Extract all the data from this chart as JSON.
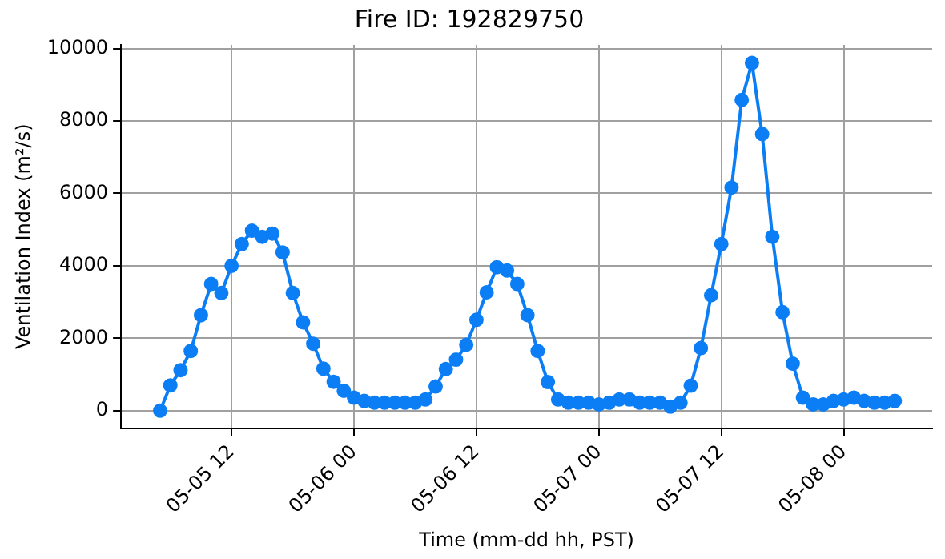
{
  "chart_data": {
    "type": "line",
    "title": "Fire ID: 192829750",
    "xlabel": "Time (mm-dd hh, PST)",
    "ylabel": "Ventilation Index (m²/s)",
    "x": [
      "--05-05T05:00",
      "--05-05T06:00",
      "--05-05T07:00",
      "--05-05T08:00",
      "--05-05T09:00",
      "--05-05T10:00",
      "--05-05T11:00",
      "--05-05T12:00",
      "--05-05T13:00",
      "--05-05T14:00",
      "--05-05T15:00",
      "--05-05T16:00",
      "--05-05T17:00",
      "--05-05T18:00",
      "--05-05T19:00",
      "--05-05T20:00",
      "--05-05T21:00",
      "--05-05T22:00",
      "--05-05T23:00",
      "--05-06T00:00",
      "--05-06T01:00",
      "--05-06T02:00",
      "--05-06T03:00",
      "--05-06T04:00",
      "--05-06T05:00",
      "--05-06T06:00",
      "--05-06T07:00",
      "--05-06T08:00",
      "--05-06T09:00",
      "--05-06T10:00",
      "--05-06T11:00",
      "--05-06T12:00",
      "--05-06T13:00",
      "--05-06T14:00",
      "--05-06T15:00",
      "--05-06T16:00",
      "--05-06T17:00",
      "--05-06T18:00",
      "--05-06T19:00",
      "--05-06T20:00",
      "--05-06T21:00",
      "--05-06T22:00",
      "--05-06T23:00",
      "--05-07T00:00",
      "--05-07T01:00",
      "--05-07T02:00",
      "--05-07T03:00",
      "--05-07T04:00",
      "--05-07T05:00",
      "--05-07T06:00",
      "--05-07T07:00",
      "--05-07T08:00",
      "--05-07T09:00",
      "--05-07T10:00",
      "--05-07T11:00",
      "--05-07T12:00",
      "--05-07T13:00",
      "--05-07T14:00",
      "--05-07T15:00",
      "--05-07T16:00",
      "--05-07T17:00",
      "--05-07T18:00",
      "--05-07T19:00",
      "--05-07T20:00",
      "--05-07T21:00",
      "--05-07T22:00",
      "--05-07T23:00",
      "--05-08T00:00",
      "--05-08T01:00",
      "--05-08T02:00",
      "--05-08T03:00",
      "--05-08T04:00",
      "--05-08T05:00"
    ],
    "series": [
      {
        "color": "#0b7ef5",
        "values": [
          0,
          700,
          1120,
          1650,
          2640,
          3500,
          3250,
          4000,
          4600,
          4970,
          4800,
          4890,
          4370,
          3250,
          2440,
          1850,
          1160,
          800,
          550,
          360,
          270,
          220,
          220,
          220,
          220,
          220,
          310,
          670,
          1150,
          1410,
          1820,
          2510,
          3270,
          3960,
          3870,
          3500,
          2640,
          1650,
          790,
          310,
          220,
          220,
          220,
          175,
          220,
          310,
          310,
          220,
          220,
          220,
          110,
          220,
          690,
          1730,
          3190,
          4600,
          6160,
          8580,
          9600,
          7640,
          4800,
          2720,
          1300,
          360,
          175,
          175,
          270,
          310,
          360,
          270,
          220,
          220,
          270
        ]
      }
    ],
    "xlim": [
      "--05-05T01:10",
      "--05-08T08:40"
    ],
    "xticks": [
      {
        "value": "--05-05T12:00",
        "label": "05-05 12"
      },
      {
        "value": "--05-06T00:00",
        "label": "05-06 00"
      },
      {
        "value": "--05-06T12:00",
        "label": "05-06 12"
      },
      {
        "value": "--05-07T00:00",
        "label": "05-07 00"
      },
      {
        "value": "--05-07T12:00",
        "label": "05-07 12"
      },
      {
        "value": "--05-08T00:00",
        "label": "05-08 00"
      }
    ],
    "ylim": [
      -480,
      10100
    ],
    "yticks": [
      0,
      2000,
      4000,
      6000,
      8000,
      10000
    ],
    "grid": true,
    "marker": "circle",
    "line_style": "solid"
  }
}
